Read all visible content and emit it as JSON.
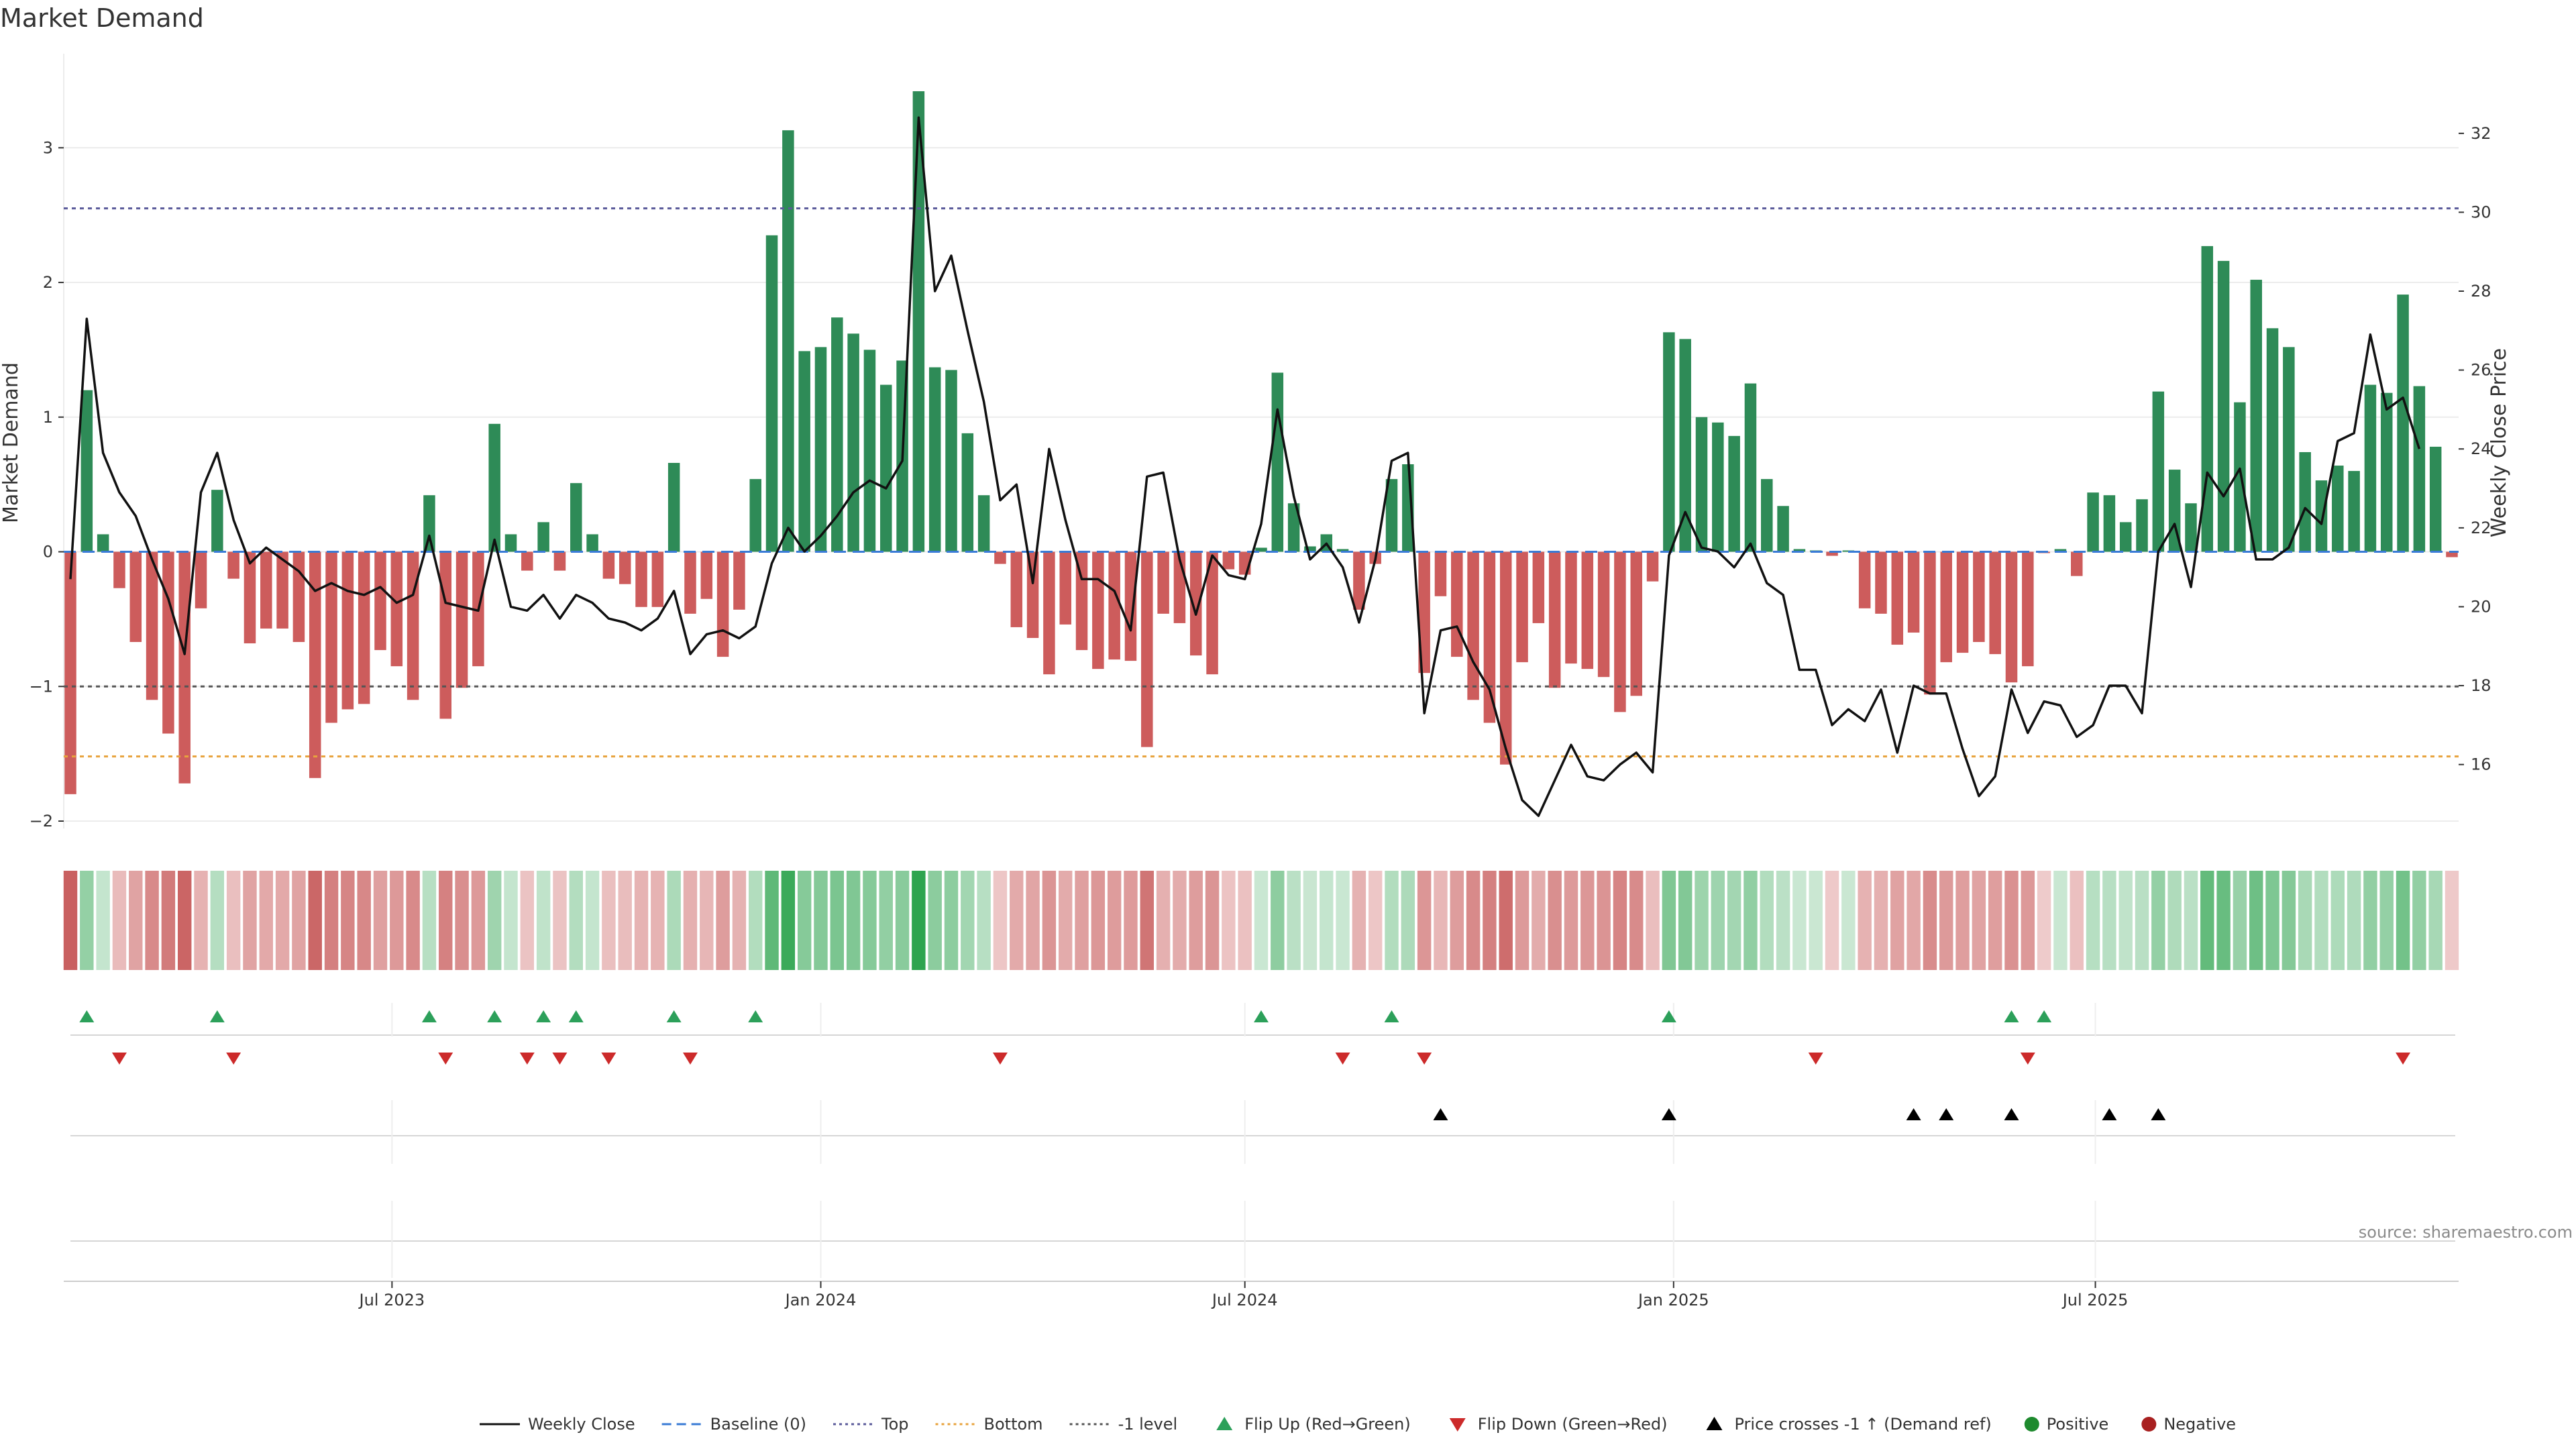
{
  "chart_data": {
    "type": "bar",
    "title": "Market Demand",
    "ylabel": "Market Demand",
    "y2label": "Weekly Close Price",
    "source": "source: sharemaestro.com",
    "ylim": [
      -2.0,
      3.4
    ],
    "y2lim": [
      14.6,
      33.0
    ],
    "yticks": [
      "−2",
      "−1",
      "0",
      "1",
      "2",
      "3"
    ],
    "y2ticks": [
      "16",
      "18",
      "20",
      "22",
      "24",
      "26",
      "28",
      "30",
      "32"
    ],
    "x_start": "2023-02-13",
    "x_end": "2025-10-27",
    "xticks": [
      {
        "date": "2023-07-01",
        "label": "Jul 2023"
      },
      {
        "date": "2024-01-01",
        "label": "Jan 2024"
      },
      {
        "date": "2024-07-01",
        "label": "Jul 2024"
      },
      {
        "date": "2025-01-01",
        "label": "Jan 2025"
      },
      {
        "date": "2025-07-01",
        "label": "Jul 2025"
      }
    ],
    "reference_lines": {
      "top": 2.55,
      "bottom": -1.52,
      "minus_one": -1.0,
      "baseline": 0
    },
    "demand": [
      -1.8,
      1.2,
      0.13,
      -0.27,
      -0.67,
      -1.1,
      -1.35,
      -1.72,
      -0.42,
      0.46,
      -0.2,
      -0.68,
      -0.57,
      -0.57,
      -0.67,
      -1.68,
      -1.27,
      -1.17,
      -1.13,
      -0.73,
      -0.85,
      -1.1,
      0.42,
      -1.24,
      -1.01,
      -0.85,
      0.95,
      0.13,
      -0.14,
      0.22,
      -0.14,
      0.51,
      0.13,
      -0.2,
      -0.24,
      -0.41,
      -0.41,
      0.66,
      -0.46,
      -0.35,
      -0.78,
      -0.43,
      0.54,
      2.35,
      3.13,
      1.49,
      1.52,
      1.74,
      1.62,
      1.5,
      1.24,
      1.42,
      3.42,
      1.37,
      1.35,
      0.88,
      0.42,
      -0.09,
      -0.56,
      -0.64,
      -0.91,
      -0.54,
      -0.73,
      -0.87,
      -0.8,
      -0.81,
      -1.45,
      -0.46,
      -0.53,
      -0.77,
      -0.91,
      -0.13,
      -0.17,
      0.03,
      1.33,
      0.36,
      0.04,
      0.13,
      0.02,
      -0.43,
      -0.09,
      0.54,
      0.65,
      -0.9,
      -0.33,
      -0.78,
      -1.1,
      -1.27,
      -1.58,
      -0.82,
      -0.53,
      -1.01,
      -0.83,
      -0.87,
      -0.93,
      -1.19,
      -1.07,
      -0.22,
      1.63,
      1.58,
      1.0,
      0.96,
      0.86,
      1.25,
      0.54,
      0.34,
      0.02,
      0.01,
      -0.03,
      0.01,
      -0.42,
      -0.46,
      -0.69,
      -0.6,
      -1.06,
      -0.82,
      -0.75,
      -0.67,
      -0.76,
      -0.97,
      -0.85,
      -0.01,
      0.02,
      -0.18,
      0.44,
      0.42,
      0.22,
      0.39,
      1.19,
      0.61,
      0.36,
      2.27,
      2.16,
      1.11,
      2.02,
      1.66,
      1.52,
      0.74,
      0.53,
      0.64,
      0.6,
      1.24,
      1.18,
      1.91,
      1.23,
      0.78,
      -0.04
    ],
    "weekly_close": [
      20.7,
      27.3,
      23.9,
      22.9,
      22.3,
      21.2,
      20.2,
      18.8,
      22.9,
      23.9,
      22.2,
      21.1,
      21.5,
      21.2,
      20.9,
      20.4,
      20.6,
      20.4,
      20.3,
      20.5,
      20.1,
      20.3,
      21.8,
      20.1,
      20.0,
      19.9,
      21.7,
      20.0,
      19.9,
      20.3,
      19.7,
      20.3,
      20.1,
      19.7,
      19.6,
      19.4,
      19.7,
      20.4,
      18.8,
      19.3,
      19.4,
      19.2,
      19.5,
      21.1,
      22.0,
      21.4,
      21.8,
      22.3,
      22.9,
      23.2,
      23.0,
      23.7,
      32.4,
      28.0,
      28.9,
      27.0,
      25.2,
      22.7,
      23.1,
      20.6,
      24.0,
      22.2,
      20.7,
      20.7,
      20.4,
      19.4,
      23.3,
      23.4,
      21.2,
      19.8,
      21.3,
      20.8,
      20.7,
      22.1,
      25.0,
      22.8,
      21.2,
      21.6,
      21.0,
      19.6,
      21.2,
      23.7,
      23.9,
      17.3,
      19.4,
      19.5,
      18.6,
      17.9,
      16.4,
      15.1,
      14.7,
      15.6,
      16.5,
      15.7,
      15.6,
      16.0,
      16.3,
      15.8,
      21.3,
      22.4,
      21.5,
      21.4,
      21.0,
      21.6,
      20.6,
      20.3,
      18.4,
      18.4,
      17.0,
      17.4,
      17.1,
      17.9,
      16.3,
      18.0,
      17.8,
      17.8,
      16.4,
      15.2,
      15.7,
      17.9,
      16.8,
      17.6,
      17.5,
      16.7,
      17.0,
      18.0,
      18.0,
      17.3,
      21.4,
      22.1,
      20.5,
      23.4,
      22.8,
      23.5,
      21.2,
      21.2,
      21.5,
      22.5,
      22.1,
      24.2,
      24.4,
      26.9,
      25.0,
      25.3,
      24.0
    ],
    "flip_up_weeks": [
      1,
      9,
      22,
      26,
      29,
      31,
      37,
      42,
      73,
      81,
      98,
      119,
      121
    ],
    "flip_down_weeks": [
      3,
      10,
      23,
      28,
      30,
      33,
      38,
      57,
      78,
      83,
      107,
      120,
      143
    ],
    "price_cross_weeks": [
      84,
      98,
      113,
      115,
      119,
      125,
      128
    ],
    "legend": [
      {
        "label": "Weekly Close",
        "kind": "line",
        "color": "#111111"
      },
      {
        "label": "Baseline (0)",
        "kind": "dash",
        "color": "#3a7bd5"
      },
      {
        "label": "Top",
        "kind": "dot",
        "color": "#5a5a9a"
      },
      {
        "label": "Bottom",
        "kind": "dot",
        "color": "#e8a33d"
      },
      {
        "label": "-1 level",
        "kind": "dot",
        "color": "#555555"
      },
      {
        "label": "Flip Up (Red→Green)",
        "kind": "tri-up",
        "color": "#2ca05a"
      },
      {
        "label": "Flip Down (Green→Red)",
        "kind": "tri-down",
        "color": "#cc2a2a"
      },
      {
        "label": "Price crosses -1 ↑ (Demand ref)",
        "kind": "tri-up",
        "color": "#000000"
      },
      {
        "label": "Positive",
        "kind": "circle",
        "color": "#1e8a2e"
      },
      {
        "label": "Negative",
        "kind": "circle",
        "color": "#a82020"
      }
    ],
    "colors": {
      "positive": "#2e8b57",
      "negative": "#cd5c5c",
      "line": "#111111"
    }
  }
}
